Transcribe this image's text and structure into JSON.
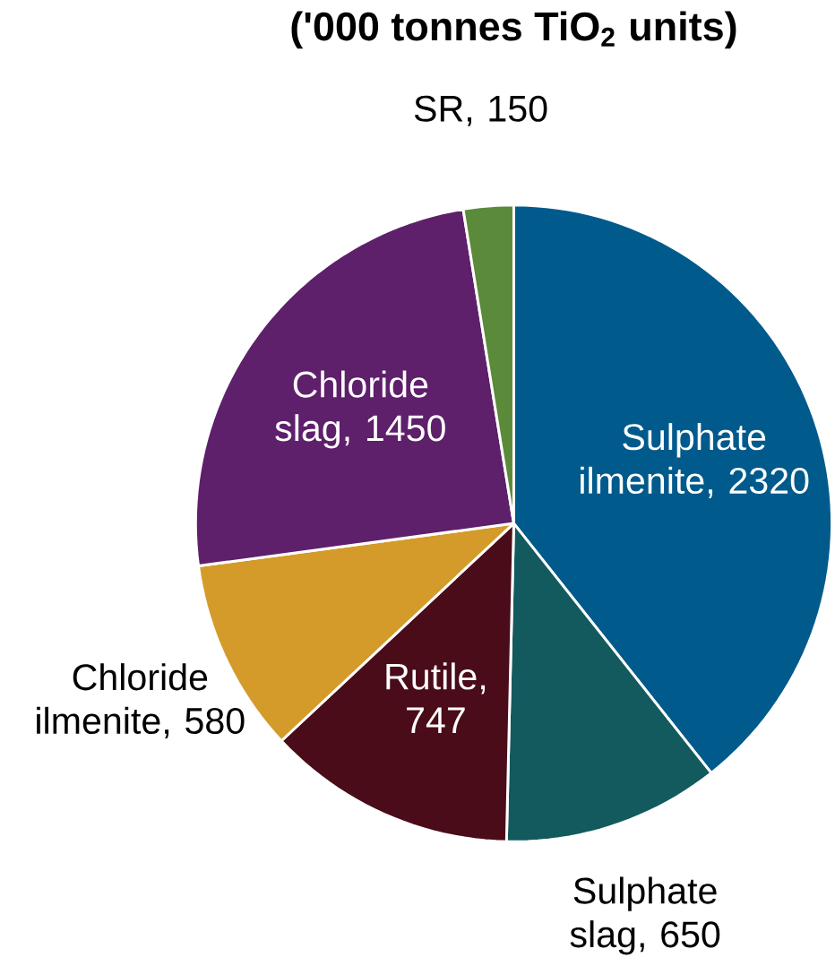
{
  "chart_data": {
    "type": "pie",
    "title": "('000 tonnes TiO$_{2}$ units)",
    "categories": [
      "Sulphate ilmenite",
      "Sulphate slag",
      "Rutile",
      "Chloride ilmenite",
      "Chloride slag",
      "SR"
    ],
    "values": [
      2320,
      650,
      747,
      580,
      1450,
      150
    ],
    "colors": [
      "#005a8c",
      "#135a5e",
      "#4a0c19",
      "#d49b2a",
      "#5e1f6b",
      "#5b8a3a"
    ],
    "value_labels": [
      ", 2320",
      ", 650",
      ", 747",
      ", 580",
      ", 1450",
      ", 150"
    ]
  }
}
